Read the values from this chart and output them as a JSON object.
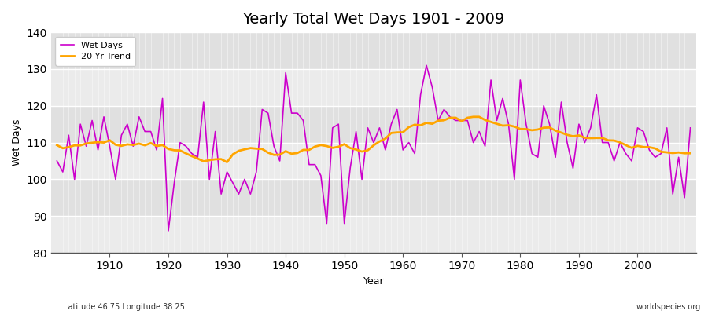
{
  "title": "Yearly Total Wet Days 1901 - 2009",
  "xlabel": "Year",
  "ylabel": "Wet Days",
  "subtitle": "Latitude 46.75 Longitude 38.25",
  "watermark": "worldspecies.org",
  "ylim": [
    80,
    140
  ],
  "yticks": [
    80,
    90,
    100,
    110,
    120,
    130,
    140
  ],
  "line_color": "#cc00cc",
  "trend_color": "#ffa500",
  "bg_color": "#f0f0f0",
  "plot_bg": "#f5f5f5",
  "years": [
    1901,
    1902,
    1903,
    1904,
    1905,
    1906,
    1907,
    1908,
    1909,
    1910,
    1911,
    1912,
    1913,
    1914,
    1915,
    1916,
    1917,
    1918,
    1919,
    1920,
    1921,
    1922,
    1923,
    1924,
    1925,
    1926,
    1927,
    1928,
    1929,
    1930,
    1931,
    1932,
    1933,
    1934,
    1935,
    1936,
    1937,
    1938,
    1939,
    1940,
    1941,
    1942,
    1943,
    1944,
    1945,
    1946,
    1947,
    1948,
    1949,
    1950,
    1951,
    1952,
    1953,
    1954,
    1955,
    1956,
    1957,
    1958,
    1959,
    1960,
    1961,
    1962,
    1963,
    1964,
    1965,
    1966,
    1967,
    1968,
    1969,
    1970,
    1971,
    1972,
    1973,
    1974,
    1975,
    1976,
    1977,
    1978,
    1979,
    1980,
    1981,
    1982,
    1983,
    1984,
    1985,
    1986,
    1987,
    1988,
    1989,
    1990,
    1991,
    1992,
    1993,
    1994,
    1995,
    1996,
    1997,
    1998,
    1999,
    2000,
    2001,
    2002,
    2003,
    2004,
    2005,
    2006,
    2007,
    2008,
    2009
  ],
  "wet_days": [
    105,
    102,
    112,
    100,
    115,
    109,
    116,
    108,
    117,
    109,
    100,
    112,
    115,
    109,
    117,
    113,
    113,
    108,
    122,
    86,
    99,
    110,
    109,
    107,
    106,
    121,
    100,
    113,
    96,
    102,
    99,
    96,
    100,
    96,
    102,
    119,
    118,
    109,
    105,
    129,
    118,
    118,
    116,
    104,
    104,
    101,
    88,
    114,
    115,
    88,
    103,
    113,
    100,
    114,
    110,
    114,
    108,
    115,
    119,
    108,
    110,
    107,
    123,
    131,
    125,
    116,
    119,
    117,
    116,
    116,
    116,
    110,
    113,
    109,
    127,
    116,
    122,
    115,
    100,
    127,
    115,
    107,
    106,
    120,
    115,
    106,
    121,
    110,
    103,
    115,
    110,
    114,
    123,
    110,
    110,
    105,
    110,
    107,
    105,
    114,
    113,
    108,
    106,
    107,
    114,
    96,
    106,
    95,
    114
  ],
  "trend_window": 20,
  "band_colors": [
    "#e8e8e8",
    "#ebebeb"
  ]
}
